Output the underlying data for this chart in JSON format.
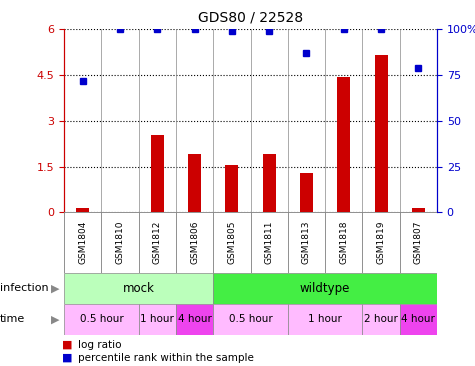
{
  "title": "GDS80 / 22528",
  "samples": [
    "GSM1804",
    "GSM1810",
    "GSM1812",
    "GSM1806",
    "GSM1805",
    "GSM1811",
    "GSM1813",
    "GSM1818",
    "GSM1819",
    "GSM1807"
  ],
  "log_ratio": [
    0.15,
    0.0,
    2.55,
    1.9,
    1.55,
    1.9,
    1.3,
    4.45,
    5.15,
    0.15
  ],
  "percentile": [
    72,
    100,
    100,
    100,
    99,
    99,
    87,
    100,
    100,
    79
  ],
  "bar_color": "#cc0000",
  "dot_color": "#0000cc",
  "ylim_left": [
    0,
    6
  ],
  "ylim_right": [
    0,
    100
  ],
  "yticks_left": [
    0,
    1.5,
    3,
    4.5,
    6
  ],
  "ytick_labels_left": [
    "0",
    "1.5",
    "3",
    "4.5",
    "6"
  ],
  "yticks_right": [
    0,
    25,
    50,
    75,
    100
  ],
  "ytick_labels_right": [
    "0",
    "25",
    "50",
    "75",
    "100%"
  ],
  "infection_groups": [
    {
      "label": "mock",
      "start": 0,
      "end": 4,
      "color": "#bbffbb"
    },
    {
      "label": "wildtype",
      "start": 4,
      "end": 10,
      "color": "#44ee44"
    }
  ],
  "time_groups": [
    {
      "label": "0.5 hour",
      "start": 0,
      "end": 2,
      "color": "#ffbbff"
    },
    {
      "label": "1 hour",
      "start": 2,
      "end": 3,
      "color": "#ffbbff"
    },
    {
      "label": "4 hour",
      "start": 3,
      "end": 4,
      "color": "#ee44ee"
    },
    {
      "label": "0.5 hour",
      "start": 4,
      "end": 6,
      "color": "#ffbbff"
    },
    {
      "label": "1 hour",
      "start": 6,
      "end": 8,
      "color": "#ffbbff"
    },
    {
      "label": "2 hour",
      "start": 8,
      "end": 9,
      "color": "#ffbbff"
    },
    {
      "label": "4 hour",
      "start": 9,
      "end": 10,
      "color": "#ee44ee"
    }
  ],
  "background_color": "#ffffff",
  "sample_bg": "#cccccc"
}
